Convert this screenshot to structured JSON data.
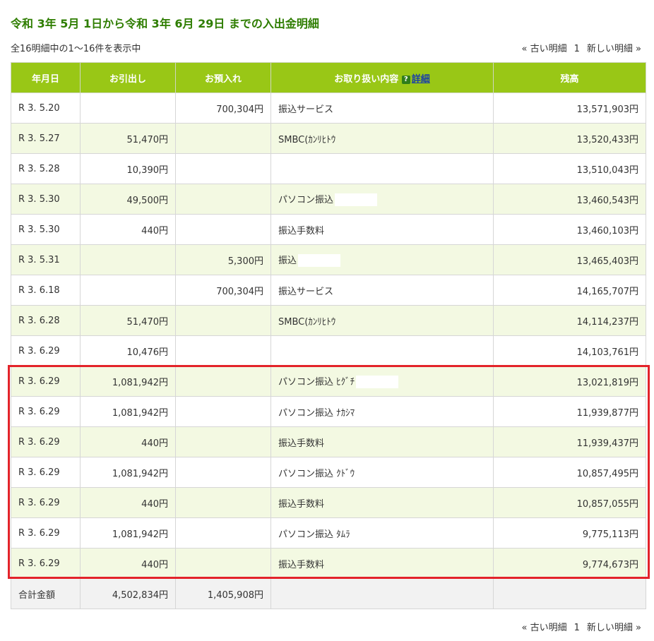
{
  "title": "令和 3年 5月 1日から令和 3年 6月 29日 までの入出金明細",
  "summary": "全16明細中の1～16件を表示中",
  "pager": {
    "prev": "« 古い明細",
    "page": "1",
    "next": "新しい明細 »"
  },
  "table": {
    "headers": {
      "date": "年月日",
      "withdrawal": "お引出し",
      "deposit": "お預入れ",
      "description": "お取り扱い内容",
      "help_icon": "?",
      "detail_link": "詳細",
      "balance": "残高"
    },
    "rows": [
      {
        "date": "R 3. 5.20",
        "withdrawal": "",
        "deposit": "700,304円",
        "description": "振込サービス",
        "balance": "13,571,903円"
      },
      {
        "date": "R 3. 5.27",
        "withdrawal": "51,470円",
        "deposit": "",
        "description": "SMBC(ｶﾝﾘﾋﾄｳ",
        "balance": "13,520,433円"
      },
      {
        "date": "R 3. 5.28",
        "withdrawal": "10,390円",
        "deposit": "",
        "description": "",
        "balance": "13,510,043円"
      },
      {
        "date": "R 3. 5.30",
        "withdrawal": "49,500円",
        "deposit": "",
        "description": "パソコン振込",
        "balance": "13,460,543円"
      },
      {
        "date": "R 3. 5.30",
        "withdrawal": "440円",
        "deposit": "",
        "description": "振込手数料",
        "balance": "13,460,103円"
      },
      {
        "date": "R 3. 5.31",
        "withdrawal": "",
        "deposit": "5,300円",
        "description": "振込",
        "balance": "13,465,403円"
      },
      {
        "date": "R 3. 6.18",
        "withdrawal": "",
        "deposit": "700,304円",
        "description": "振込サービス",
        "balance": "14,165,707円"
      },
      {
        "date": "R 3. 6.28",
        "withdrawal": "51,470円",
        "deposit": "",
        "description": "SMBC(ｶﾝﾘﾋﾄｳ",
        "balance": "14,114,237円"
      },
      {
        "date": "R 3. 6.29",
        "withdrawal": "10,476円",
        "deposit": "",
        "description": "",
        "balance": "14,103,761円"
      },
      {
        "date": "R 3. 6.29",
        "withdrawal": "1,081,942円",
        "deposit": "",
        "description": "パソコン振込 ﾋｸﾞﾁ",
        "balance": "13,021,819円"
      },
      {
        "date": "R 3. 6.29",
        "withdrawal": "1,081,942円",
        "deposit": "",
        "description": "パソコン振込 ﾅｶｼﾏ",
        "balance": "11,939,877円"
      },
      {
        "date": "R 3. 6.29",
        "withdrawal": "440円",
        "deposit": "",
        "description": "振込手数料",
        "balance": "11,939,437円"
      },
      {
        "date": "R 3. 6.29",
        "withdrawal": "1,081,942円",
        "deposit": "",
        "description": "パソコン振込 ｸﾄﾞｳ",
        "balance": "10,857,495円"
      },
      {
        "date": "R 3. 6.29",
        "withdrawal": "440円",
        "deposit": "",
        "description": "振込手数料",
        "balance": "10,857,055円"
      },
      {
        "date": "R 3. 6.29",
        "withdrawal": "1,081,942円",
        "deposit": "",
        "description": "パソコン振込 ﾀﾑﾗ",
        "balance": "9,775,113円"
      },
      {
        "date": "R 3. 6.29",
        "withdrawal": "440円",
        "deposit": "",
        "description": "振込手数料",
        "balance": "9,774,673円"
      }
    ],
    "total": {
      "label": "合計金額",
      "withdrawal": "4,502,834円",
      "deposit": "1,405,908円",
      "description": "",
      "balance": ""
    }
  },
  "colors": {
    "header_bg": "#99c716",
    "title_color": "#2e7d00",
    "highlight_border": "#e3232a",
    "alt_row_bg": "#f3f9e2"
  }
}
